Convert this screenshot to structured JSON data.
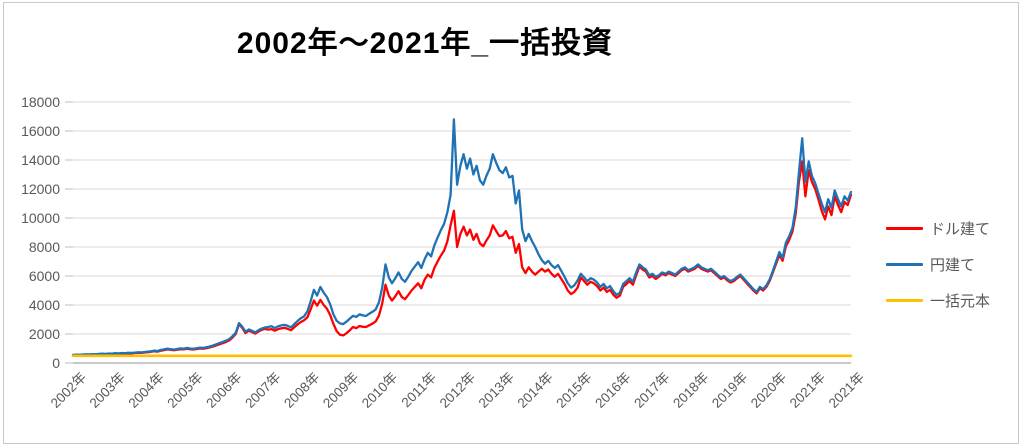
{
  "header": {
    "title": "2002年～2021年_一括投資"
  },
  "legend": [
    {
      "label": "ドル建て",
      "color": "#FF0000"
    },
    {
      "label": "円建て",
      "color": "#1F72B5"
    },
    {
      "label": "一括元本",
      "color": "#FFC000"
    }
  ],
  "chart_data": {
    "type": "line",
    "title": "2002年～2021年_一括投資",
    "x_unit": "month",
    "x_range": [
      "2002-01",
      "2021-12"
    ],
    "x_tick_labels": [
      "2002年",
      "2003年",
      "2004年",
      "2005年",
      "2006年",
      "2007年",
      "2008年",
      "2009年",
      "2010年",
      "2011年",
      "2012年",
      "2013年",
      "2014年",
      "2015年",
      "2016年",
      "2017年",
      "2018年",
      "2019年",
      "2020年",
      "2021年",
      "2021年"
    ],
    "ylim": [
      0,
      18000
    ],
    "y_ticks": [
      0,
      2000,
      4000,
      6000,
      8000,
      10000,
      12000,
      14000,
      16000,
      18000
    ],
    "grid": true,
    "legend_position": "right",
    "colors": {
      "grid": "#d9d9d9",
      "axis": "#a6a6a6",
      "tick": "#bfbfbf",
      "label_text": "#595959"
    },
    "series": [
      {
        "name": "ドル建て",
        "color": "#FF0000",
        "values": [
          545,
          560,
          555,
          570,
          580,
          575,
          590,
          585,
          605,
          615,
          610,
          630,
          625,
          645,
          640,
          660,
          655,
          675,
          670,
          690,
          705,
          700,
          725,
          745,
          770,
          810,
          785,
          850,
          890,
          935,
          905,
          880,
          915,
          950,
          935,
          985,
          950,
          930,
          965,
          1000,
          985,
          1030,
          1075,
          1140,
          1215,
          1290,
          1365,
          1450,
          1560,
          1760,
          2010,
          2680,
          2420,
          2060,
          2230,
          2130,
          2030,
          2170,
          2290,
          2350,
          2300,
          2340,
          2230,
          2340,
          2390,
          2420,
          2350,
          2260,
          2470,
          2660,
          2830,
          2950,
          3150,
          3700,
          4300,
          3950,
          4350,
          4000,
          3750,
          3300,
          2700,
          2200,
          1950,
          1900,
          2050,
          2250,
          2480,
          2400,
          2550,
          2500,
          2480,
          2600,
          2720,
          2870,
          3280,
          4100,
          5400,
          4650,
          4300,
          4600,
          4950,
          4550,
          4400,
          4700,
          5000,
          5250,
          5500,
          5150,
          5750,
          6100,
          5900,
          6550,
          7000,
          7400,
          7750,
          8400,
          9500,
          10500,
          8000,
          8900,
          9400,
          8800,
          9200,
          8500,
          8900,
          8250,
          8050,
          8450,
          8800,
          9500,
          9100,
          8750,
          8800,
          9100,
          8600,
          8700,
          7600,
          8200,
          6600,
          6200,
          6600,
          6300,
          6100,
          6300,
          6500,
          6300,
          6450,
          6150,
          5950,
          6150,
          5800,
          5450,
          5000,
          4750,
          4900,
          5200,
          5900,
          5650,
          5400,
          5600,
          5500,
          5300,
          5000,
          5200,
          4900,
          5050,
          4700,
          4500,
          4650,
          5250,
          5450,
          5650,
          5400,
          6050,
          6650,
          6450,
          6300,
          5900,
          6000,
          5800,
          5950,
          6150,
          6050,
          6200,
          6100,
          6000,
          6200,
          6400,
          6500,
          6300,
          6400,
          6500,
          6700,
          6500,
          6400,
          6300,
          6400,
          6200,
          6000,
          5800,
          5900,
          5700,
          5550,
          5650,
          5850,
          6000,
          5750,
          5500,
          5250,
          5000,
          4800,
          5150,
          5000,
          5250,
          5650,
          6250,
          6850,
          7450,
          7050,
          8050,
          8500,
          9050,
          10300,
          12500,
          13900,
          11500,
          13300,
          12500,
          12000,
          11300,
          10500,
          9900,
          10800,
          10200,
          11500,
          10900,
          10400,
          11100,
          10900,
          11600
        ]
      },
      {
        "name": "円建て",
        "color": "#1F72B5",
        "values": [
          560,
          575,
          565,
          585,
          600,
          590,
          610,
          600,
          625,
          640,
          630,
          655,
          650,
          675,
          665,
          690,
          680,
          705,
          695,
          720,
          740,
          730,
          760,
          785,
          810,
          855,
          825,
          900,
          940,
          990,
          955,
          925,
          965,
          1005,
          985,
          1040,
          1000,
          980,
          1020,
          1060,
          1040,
          1090,
          1140,
          1210,
          1290,
          1370,
          1450,
          1540,
          1650,
          1850,
          2100,
          2750,
          2500,
          2150,
          2320,
          2220,
          2120,
          2260,
          2380,
          2450,
          2480,
          2530,
          2410,
          2530,
          2590,
          2630,
          2560,
          2460,
          2690,
          2900,
          3090,
          3220,
          3560,
          4250,
          5050,
          4650,
          5250,
          4850,
          4550,
          4050,
          3350,
          2900,
          2730,
          2680,
          2850,
          3050,
          3250,
          3180,
          3350,
          3280,
          3240,
          3400,
          3530,
          3700,
          4200,
          5200,
          6800,
          5900,
          5500,
          5850,
          6250,
          5800,
          5600,
          5950,
          6350,
          6650,
          6950,
          6550,
          7150,
          7600,
          7350,
          8100,
          8650,
          9150,
          9600,
          10400,
          11600,
          16800,
          12300,
          13600,
          14400,
          13400,
          14100,
          13000,
          13600,
          12600,
          12300,
          12900,
          13400,
          14400,
          13800,
          13300,
          13100,
          13500,
          12800,
          12900,
          11000,
          11900,
          9200,
          8400,
          8900,
          8400,
          8000,
          7500,
          7100,
          6850,
          7050,
          6750,
          6550,
          6750,
          6350,
          5950,
          5500,
          5200,
          5350,
          5700,
          6150,
          5900,
          5650,
          5850,
          5750,
          5550,
          5250,
          5450,
          5150,
          5300,
          4950,
          4700,
          4850,
          5450,
          5650,
          5850,
          5600,
          6250,
          6800,
          6600,
          6450,
          6050,
          6150,
          5950,
          6050,
          6250,
          6150,
          6300,
          6200,
          6100,
          6300,
          6500,
          6600,
          6400,
          6500,
          6600,
          6800,
          6600,
          6500,
          6400,
          6500,
          6300,
          6100,
          5900,
          6000,
          5800,
          5650,
          5750,
          5950,
          6100,
          5850,
          5600,
          5350,
          5100,
          4900,
          5250,
          5100,
          5350,
          5750,
          6350,
          7000,
          7650,
          7250,
          8300,
          8750,
          9300,
          10700,
          13100,
          15500,
          12500,
          13900,
          12900,
          12400,
          11700,
          11000,
          10400,
          11300,
          10700,
          11900,
          11300,
          10800,
          11500,
          11200,
          11800
        ]
      },
      {
        "name": "一括元本",
        "color": "#FFC000",
        "values": [
          500,
          500
        ]
      }
    ]
  }
}
